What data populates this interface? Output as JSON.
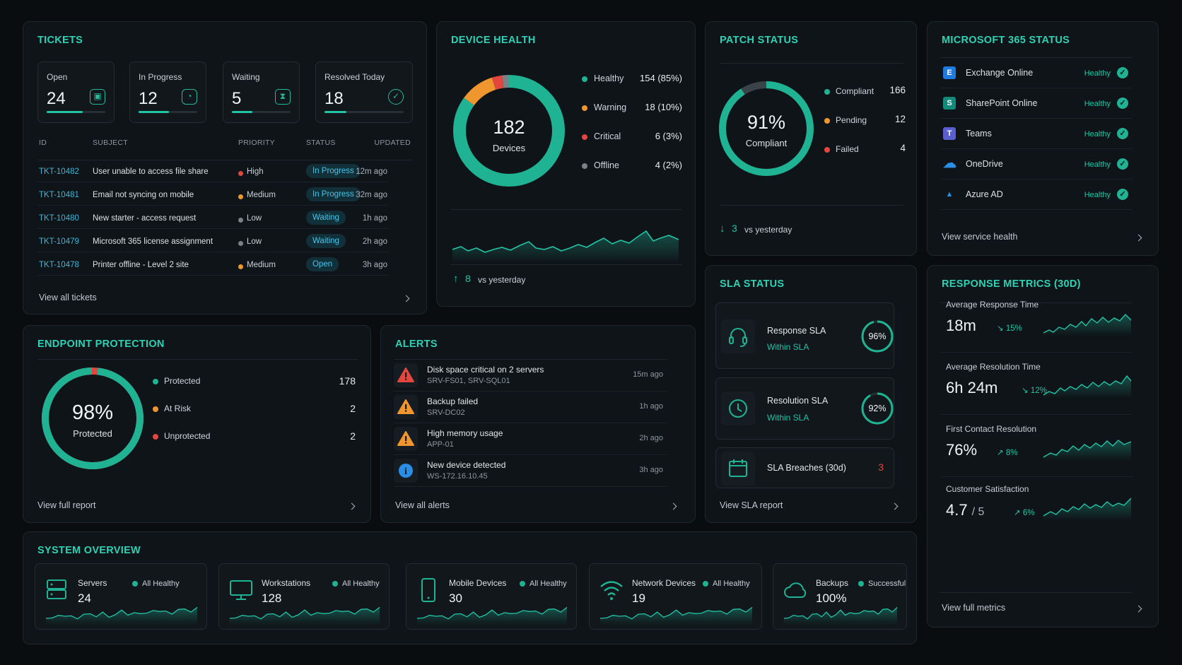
{
  "tickets": {
    "title": "TICKETS",
    "stats": [
      {
        "label": "Open",
        "value": "24",
        "progress": 0.62
      },
      {
        "label": "In Progress",
        "value": "12",
        "progress": 0.52
      },
      {
        "label": "Waiting",
        "value": "5",
        "progress": 0.35
      },
      {
        "label": "Resolved Today",
        "value": "18",
        "progress": 0.28
      }
    ],
    "columns": [
      "ID",
      "SUBJECT",
      "PRIORITY",
      "STATUS",
      "UPDATED"
    ],
    "rows": [
      {
        "id": "TKT-10482",
        "subject": "User unable to access file share",
        "priority": "High",
        "status": "In Progress",
        "updated": "12m ago"
      },
      {
        "id": "TKT-10481",
        "subject": "Email not syncing on mobile",
        "priority": "Medium",
        "status": "In Progress",
        "updated": "32m ago"
      },
      {
        "id": "TKT-10480",
        "subject": "New starter - access request",
        "priority": "Low",
        "status": "Waiting",
        "updated": "1h ago"
      },
      {
        "id": "TKT-10479",
        "subject": "Microsoft 365 license assignment",
        "priority": "Low",
        "status": "Waiting",
        "updated": "2h ago"
      },
      {
        "id": "TKT-10478",
        "subject": "Printer offline - Level 2 site",
        "priority": "Medium",
        "status": "Open",
        "updated": "3h ago"
      }
    ],
    "view_all": "View all tickets"
  },
  "device_health": {
    "title": "DEVICE HEALTH",
    "total": "182",
    "total_label": "Devices",
    "legend": [
      {
        "label": "Healthy",
        "count": "154",
        "pct": "(85%)",
        "color": "#1fb394",
        "share": 85
      },
      {
        "label": "Warning",
        "count": "18",
        "pct": "(10%)",
        "color": "#f0962e",
        "share": 10
      },
      {
        "label": "Critical",
        "count": "6",
        "pct": "(3%)",
        "color": "#e2463f",
        "share": 3
      },
      {
        "label": "Offline",
        "count": "4",
        "pct": "(2%)",
        "color": "#7a8287",
        "share": 2
      }
    ],
    "delta_value": "8",
    "delta_label": "vs yesterday"
  },
  "patch_status": {
    "title": "PATCH STATUS",
    "pct": "91%",
    "pct_label": "Compliant",
    "compliance": 91,
    "legend": [
      {
        "label": "Compliant",
        "count": "166",
        "color": "#1fb394"
      },
      {
        "label": "Pending",
        "count": "12",
        "color": "#f0962e"
      },
      {
        "label": "Failed",
        "count": "4",
        "color": "#e2463f"
      }
    ],
    "delta_value": "3",
    "delta_label": "vs yesterday"
  },
  "m365": {
    "title": "MICROSOFT 365 STATUS",
    "services": [
      {
        "name": "Exchange Online",
        "status": "Healthy",
        "icon": "exchange-icon",
        "color": "#1f7be0"
      },
      {
        "name": "SharePoint Online",
        "status": "Healthy",
        "icon": "sharepoint-icon",
        "color": "#138a7a"
      },
      {
        "name": "Teams",
        "status": "Healthy",
        "icon": "teams-icon",
        "color": "#5a5fd0"
      },
      {
        "name": "OneDrive",
        "status": "Healthy",
        "icon": "onedrive-icon",
        "color": "#2b8fe8"
      },
      {
        "name": "Azure AD",
        "status": "Healthy",
        "icon": "azure-ad-icon",
        "color": "#2a8ee6"
      }
    ],
    "view_link": "View service health"
  },
  "endpoint": {
    "title": "ENDPOINT PROTECTION",
    "pct": "98%",
    "pct_label": "Protected",
    "protected_share": 98,
    "legend": [
      {
        "label": "Protected",
        "count": "178",
        "color": "#1fb394"
      },
      {
        "label": "At Risk",
        "count": "2",
        "color": "#f0962e"
      },
      {
        "label": "Unprotected",
        "count": "2",
        "color": "#e2463f"
      }
    ],
    "view_link": "View full report"
  },
  "alerts": {
    "title": "ALERTS",
    "items": [
      {
        "title": "Disk space critical on 2 servers",
        "sub": "SRV-FS01, SRV-SQL01",
        "time": "15m ago",
        "icon": "warning-triangle-icon",
        "color": "#e2463f"
      },
      {
        "title": "Backup failed",
        "sub": "SRV-DC02",
        "time": "1h ago",
        "icon": "warning-triangle-icon",
        "color": "#f0962e"
      },
      {
        "title": "High memory usage",
        "sub": "APP-01",
        "time": "2h ago",
        "icon": "warning-triangle-icon",
        "color": "#f0962e"
      },
      {
        "title": "New device detected",
        "sub": "WS-172.16.10.45",
        "time": "3h ago",
        "icon": "info-icon",
        "color": "#2a8ee6"
      }
    ],
    "view_link": "View all alerts"
  },
  "sla": {
    "title": "SLA STATUS",
    "response": {
      "label": "Response SLA",
      "status": "Within SLA",
      "pct": "96%",
      "value": 96
    },
    "resolution": {
      "label": "Resolution SLA",
      "status": "Within SLA",
      "pct": "92%",
      "value": 92
    },
    "breaches": {
      "label": "SLA Breaches (30d)",
      "value": "3"
    },
    "view_link": "View SLA report"
  },
  "metrics": {
    "title": "RESPONSE METRICS (30D)",
    "items": [
      {
        "label": "Average Response Time",
        "value": "18m",
        "suffix": "",
        "delta": "15%",
        "arrow": "↘"
      },
      {
        "label": "Average Resolution Time",
        "value": "6h 24m",
        "suffix": "",
        "delta": "12%",
        "arrow": "↘"
      },
      {
        "label": "First Contact Resolution",
        "value": "76%",
        "suffix": "",
        "delta": "8%",
        "arrow": "↗"
      },
      {
        "label": "Customer Satisfaction",
        "value": "4.7",
        "suffix": "/ 5",
        "delta": "6%",
        "arrow": "↗"
      }
    ],
    "view_link": "View full metrics"
  },
  "system": {
    "title": "SYSTEM OVERVIEW",
    "items": [
      {
        "name": "Servers",
        "value": "24",
        "status": "All Healthy",
        "icon": "server-icon"
      },
      {
        "name": "Workstations",
        "value": "128",
        "status": "All Healthy",
        "icon": "monitor-icon"
      },
      {
        "name": "Mobile Devices",
        "value": "30",
        "status": "All Healthy",
        "icon": "mobile-icon"
      },
      {
        "name": "Network Devices",
        "value": "19",
        "status": "All Healthy",
        "icon": "wifi-icon"
      },
      {
        "name": "Backups",
        "value": "100%",
        "status": "Successful",
        "icon": "cloud-icon"
      }
    ]
  },
  "colors": {
    "accent": "#22c4a6",
    "bg": "#0a0d10",
    "card": "#0f1418",
    "warning": "#f0962e",
    "critical": "#e2463f",
    "info": "#46c4e8"
  }
}
